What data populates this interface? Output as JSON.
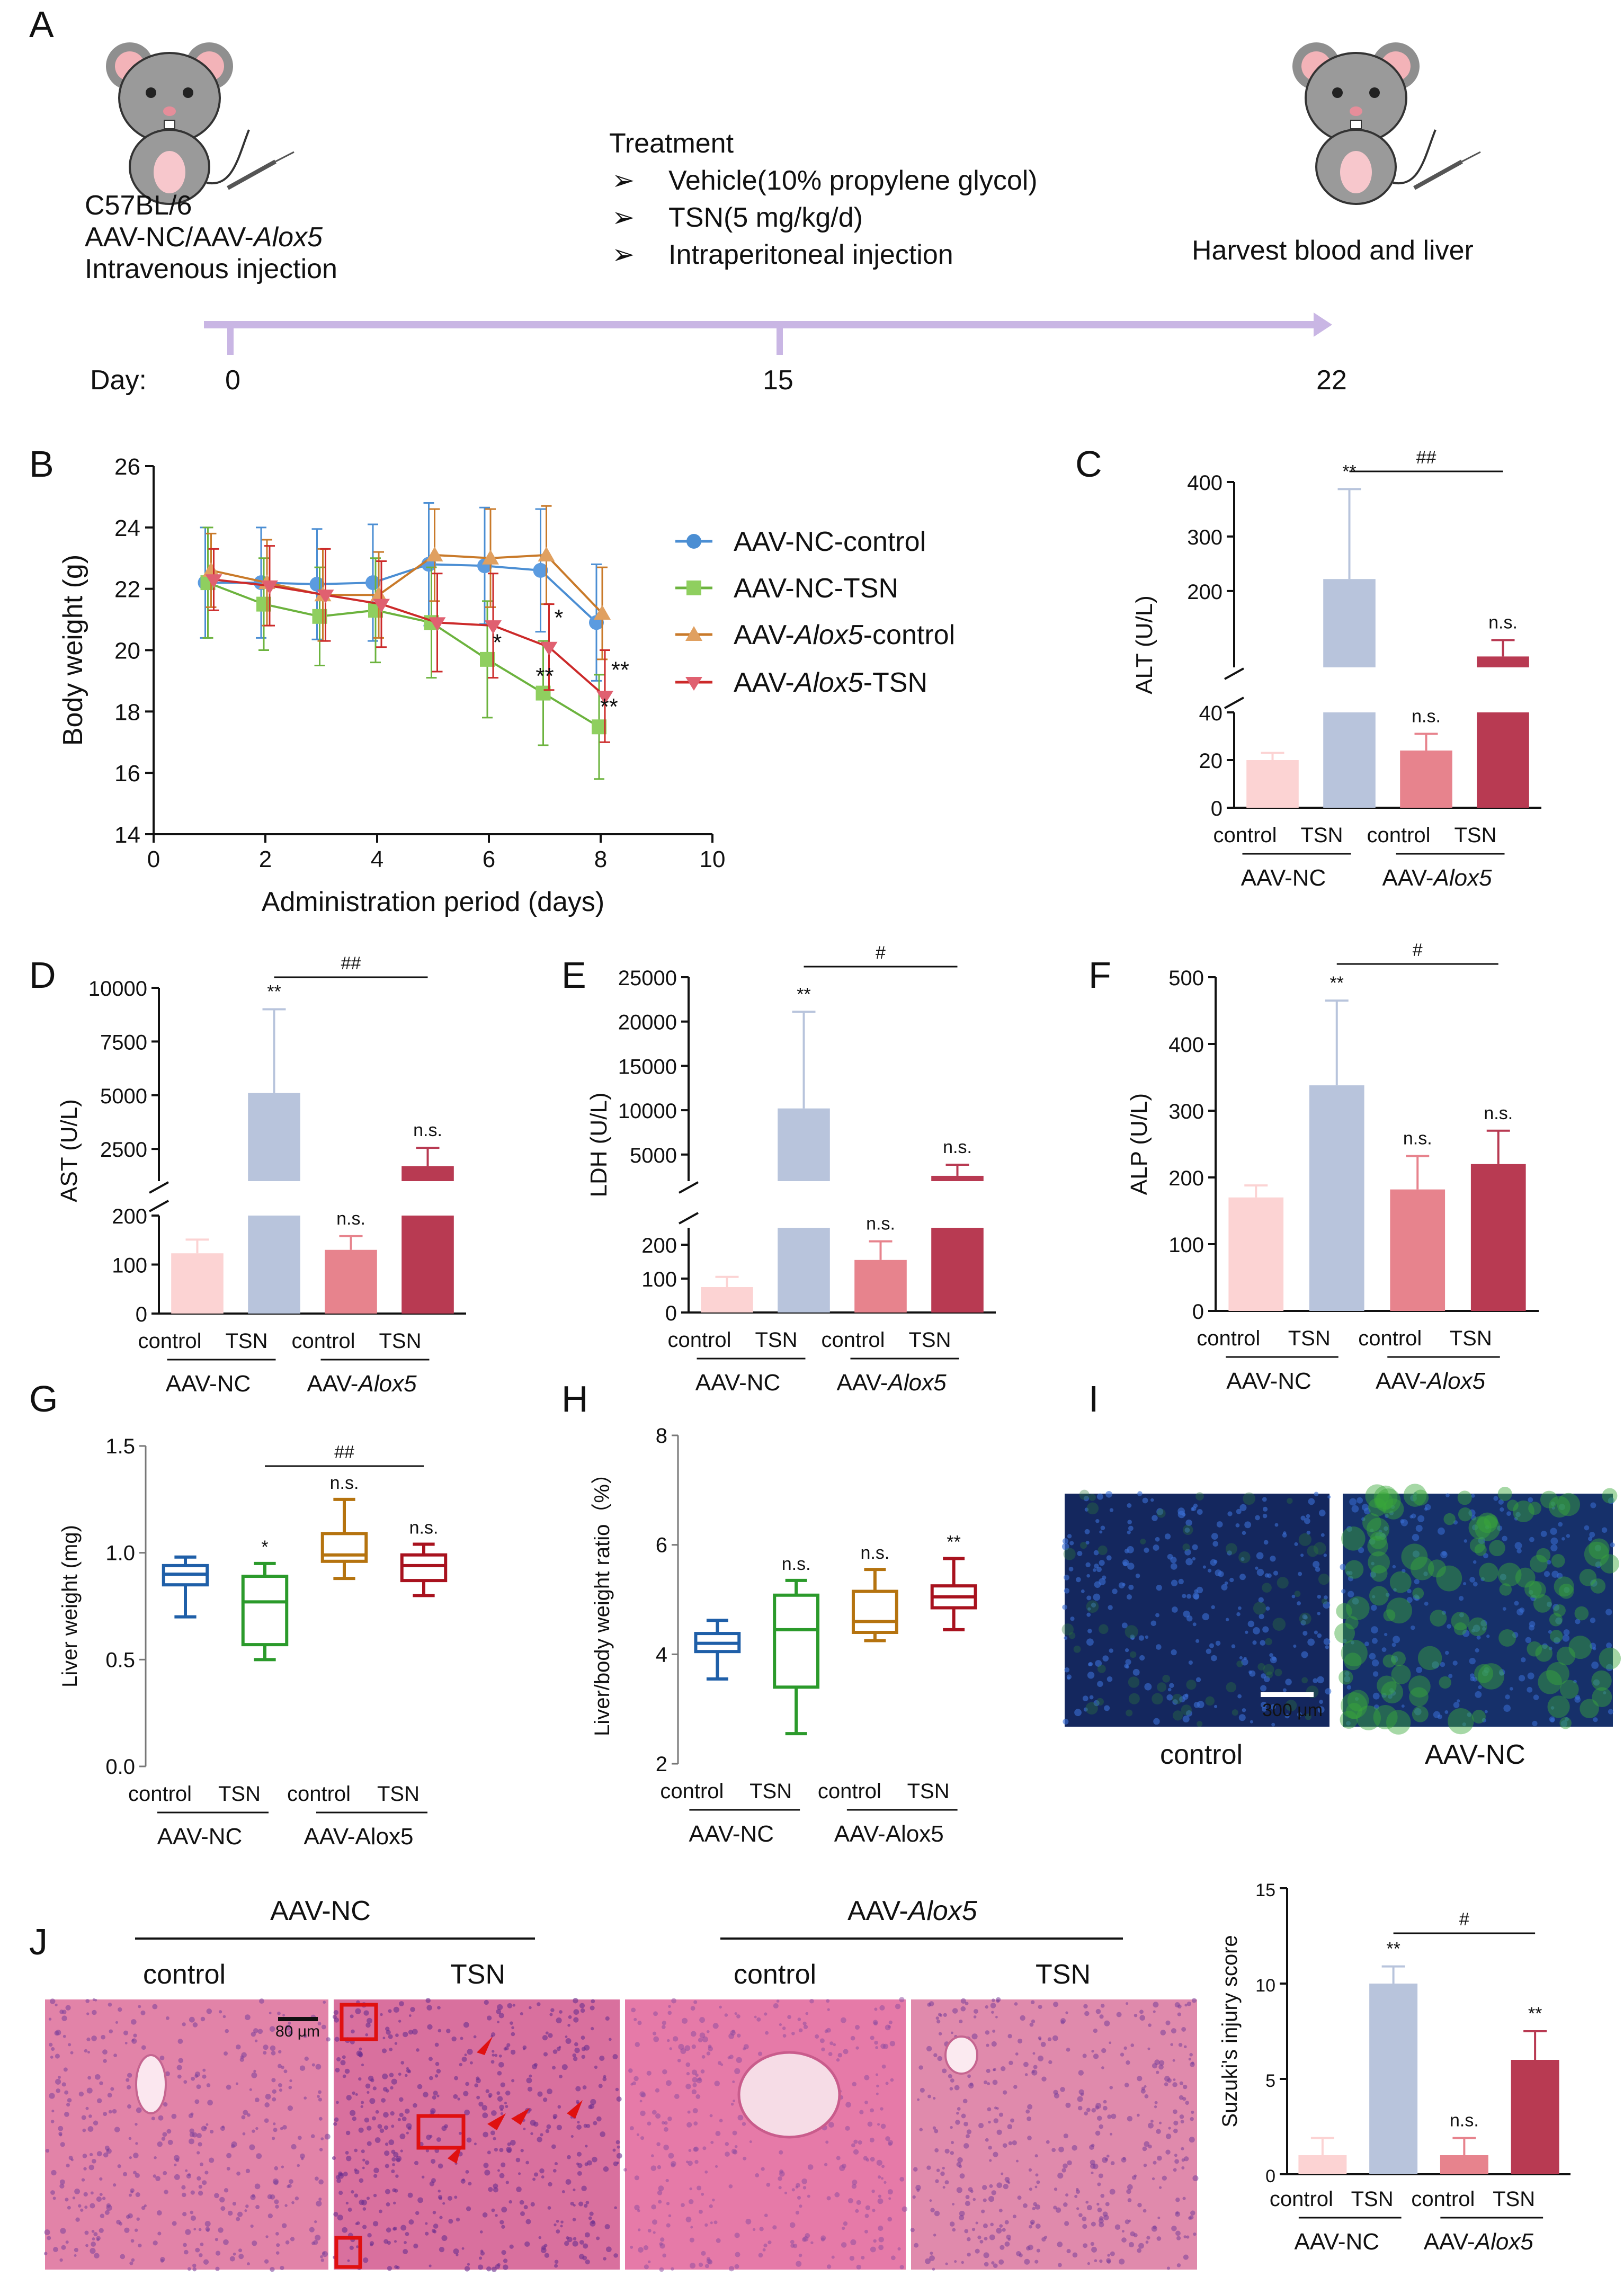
{
  "panels": {
    "A": "A",
    "B": "B",
    "C": "C",
    "D": "D",
    "E": "E",
    "F": "F",
    "G": "G",
    "H": "H",
    "I": "I",
    "J": "J"
  },
  "schematic": {
    "mouse_line1": "C57BL/6",
    "mouse_line2_prefix": "AAV-NC/AAV-",
    "mouse_line2_gene": "Alox5",
    "mouse_line3": "Intravenous injection",
    "treatment_title": "Treatment",
    "treatment_items": [
      "Vehicle(10% propylene glycol)",
      "TSN(5 mg/kg/d)",
      "Intraperitoneal injection"
    ],
    "harvest": "Harvest blood and liver",
    "day_label": "Day:",
    "days": [
      "0",
      "15",
      "22"
    ],
    "colors": {
      "timeline": "#c9b6e4",
      "mouse_body": "#8f8f8f",
      "mouse_ear": "#f3b3b8"
    }
  },
  "groups": {
    "ctrl": "control",
    "tsn": "TSN",
    "aavnc": "AAV-NC",
    "aav_prefix": "AAV-",
    "gene": "Alox5",
    "aavalox_plain": "AAV-Alox5"
  },
  "colors": {
    "nc_control": "#fcd3d3",
    "nc_tsn": "#b8c4dc",
    "alox_control": "#e7838d",
    "alox_tsn": "#b83a52",
    "line_nc_control": "#4b8ed3",
    "line_nc_tsn": "#6cb33e",
    "line_alox_control": "#c97a2a",
    "line_alox_tsn": "#cc2a2a",
    "box_1": "#1f5fa8",
    "box_2": "#2b9a2b",
    "box_3": "#b5730f",
    "box_4": "#a8121e",
    "he_pink": "#e0739e",
    "if_blue": "#1d3a7a",
    "if_green": "#3aa83a"
  },
  "chart_data": [
    {
      "id": "B",
      "type": "line",
      "xlabel": "Administration period (days)",
      "ylabel": "Body weight (g)",
      "xlim": [
        0,
        10
      ],
      "ylim": [
        14,
        26
      ],
      "xticks": [
        0,
        2,
        4,
        6,
        8,
        10
      ],
      "yticks": [
        14,
        16,
        18,
        20,
        22,
        24,
        26
      ],
      "series": [
        {
          "name_parts": [
            "AAV-NC-control"
          ],
          "x": [
            1,
            2,
            3,
            4,
            5,
            6,
            7,
            8
          ],
          "y": [
            22.2,
            22.2,
            22.15,
            22.2,
            22.8,
            22.75,
            22.6,
            20.9
          ],
          "err": [
            1.8,
            1.8,
            1.8,
            1.9,
            2.0,
            1.9,
            2.0,
            1.9
          ]
        },
        {
          "name_parts": [
            "AAV-NC-TSN"
          ],
          "x": [
            1,
            2,
            3,
            4,
            5,
            6,
            7,
            8
          ],
          "y": [
            22.2,
            21.5,
            21.1,
            21.3,
            20.9,
            19.7,
            18.6,
            17.5
          ],
          "err": [
            1.8,
            1.5,
            1.6,
            1.7,
            1.8,
            1.9,
            1.7,
            1.7
          ]
        },
        {
          "name_parts": [
            "AAV-",
            "Alox5",
            "-control"
          ],
          "x": [
            1,
            2,
            3,
            4,
            5,
            6,
            7,
            8
          ],
          "y": [
            22.6,
            22.2,
            21.8,
            21.8,
            23.1,
            23.0,
            23.1,
            21.2
          ],
          "err": [
            1.2,
            1.4,
            1.5,
            1.4,
            1.5,
            1.6,
            1.6,
            1.5
          ]
        },
        {
          "name_parts": [
            "AAV-",
            "Alox5",
            "-TSN"
          ],
          "x": [
            1,
            2,
            3,
            4,
            5,
            6,
            7,
            8
          ],
          "y": [
            22.3,
            22.1,
            21.8,
            21.5,
            20.9,
            20.8,
            20.1,
            18.5
          ],
          "err": [
            1.0,
            1.3,
            1.5,
            1.4,
            1.6,
            1.7,
            1.4,
            1.5
          ]
        }
      ],
      "annotations": [
        {
          "x": 6.15,
          "y": 20.0,
          "text": "*"
        },
        {
          "x": 7.25,
          "y": 20.8,
          "text": "*"
        },
        {
          "x": 7.0,
          "y": 18.9,
          "text": "**"
        },
        {
          "x": 8.35,
          "y": 19.1,
          "text": "**"
        },
        {
          "x": 8.15,
          "y": 17.9,
          "text": "**"
        }
      ]
    },
    {
      "id": "C",
      "type": "bar",
      "ylabel": "ALT (U/L)",
      "ylim_low": [
        0,
        40
      ],
      "ylim_high": [
        60,
        400
      ],
      "yticks_low": [
        0,
        20,
        40
      ],
      "yticks_high": [
        200,
        300,
        400
      ],
      "values": [
        20,
        222,
        24,
        80
      ],
      "err": [
        3,
        165,
        7,
        30
      ],
      "sig": [
        "",
        "**",
        "n.s.",
        "n.s."
      ],
      "bracket": "##"
    },
    {
      "id": "D",
      "type": "bar",
      "ylabel": "AST (U/L)",
      "ylim_low": [
        0,
        200
      ],
      "ylim_high": [
        1000,
        10000
      ],
      "yticks_low": [
        0,
        100,
        200
      ],
      "yticks_high": [
        2500,
        5000,
        7500,
        10000
      ],
      "values": [
        123,
        5100,
        130,
        1700
      ],
      "err": [
        28,
        3900,
        28,
        850
      ],
      "sig": [
        "",
        "**",
        "n.s.",
        "n.s."
      ],
      "bracket": "##"
    },
    {
      "id": "E",
      "type": "bar",
      "ylabel": "LDH (U/L)",
      "ylim_low": [
        0,
        250
      ],
      "ylim_high": [
        2000,
        25000
      ],
      "yticks_low": [
        0,
        100,
        200
      ],
      "yticks_high": [
        5000,
        10000,
        15000,
        20000,
        25000
      ],
      "values": [
        75,
        10200,
        155,
        2600
      ],
      "err": [
        30,
        10900,
        55,
        1250
      ],
      "sig": [
        "",
        "**",
        "n.s.",
        "n.s."
      ],
      "bracket": "#"
    },
    {
      "id": "F",
      "type": "bar",
      "ylabel": "ALP (U/L)",
      "ylim": [
        0,
        500
      ],
      "yticks": [
        0,
        100,
        200,
        300,
        400,
        500
      ],
      "values": [
        170,
        338,
        182,
        220
      ],
      "err": [
        18,
        127,
        50,
        50
      ],
      "sig": [
        "",
        "**",
        "n.s.",
        "n.s."
      ],
      "bracket": "#"
    },
    {
      "id": "G",
      "type": "box",
      "ylabel": "Liver weight (mg)",
      "ylim": [
        0,
        1.5
      ],
      "yticks": [
        0.0,
        0.5,
        1.0,
        1.5
      ],
      "boxes": [
        {
          "min": 0.7,
          "q1": 0.85,
          "med": 0.9,
          "q3": 0.94,
          "max": 0.98
        },
        {
          "min": 0.5,
          "q1": 0.57,
          "med": 0.77,
          "q3": 0.89,
          "max": 0.95
        },
        {
          "min": 0.88,
          "q1": 0.96,
          "med": 0.99,
          "q3": 1.09,
          "max": 1.25
        },
        {
          "min": 0.8,
          "q1": 0.87,
          "med": 0.94,
          "q3": 0.99,
          "max": 1.04
        }
      ],
      "sig": [
        "",
        "*",
        "n.s.",
        "n.s."
      ],
      "bracket": "##"
    },
    {
      "id": "H",
      "type": "box",
      "ylabel": "Liver/body weight ratio（%）",
      "ylim": [
        2,
        8
      ],
      "yticks": [
        2,
        4,
        6,
        8
      ],
      "boxes": [
        {
          "min": 3.55,
          "q1": 4.05,
          "med": 4.2,
          "q3": 4.38,
          "max": 4.62
        },
        {
          "min": 2.55,
          "q1": 3.4,
          "med": 4.45,
          "q3": 5.08,
          "max": 5.35
        },
        {
          "min": 4.25,
          "q1": 4.4,
          "med": 4.6,
          "q3": 5.15,
          "max": 5.55
        },
        {
          "min": 4.45,
          "q1": 4.85,
          "med": 5.05,
          "q3": 5.25,
          "max": 5.75
        }
      ],
      "sig": [
        "",
        "n.s.",
        "n.s.",
        "**"
      ]
    },
    {
      "id": "J_score",
      "type": "bar",
      "ylabel": "Suzuki's injury score",
      "ylim": [
        0,
        15
      ],
      "yticks": [
        0,
        5,
        10,
        15
      ],
      "values": [
        1,
        10,
        1,
        6
      ],
      "err": [
        0.9,
        0.9,
        0.9,
        1.5
      ],
      "sig": [
        "",
        "**",
        "n.s.",
        "**"
      ],
      "bracket": "#"
    }
  ],
  "panel_I": {
    "scale": "300 μm",
    "labels": [
      "control",
      "AAV-NC"
    ]
  },
  "panel_J": {
    "scale": "80 μm"
  }
}
